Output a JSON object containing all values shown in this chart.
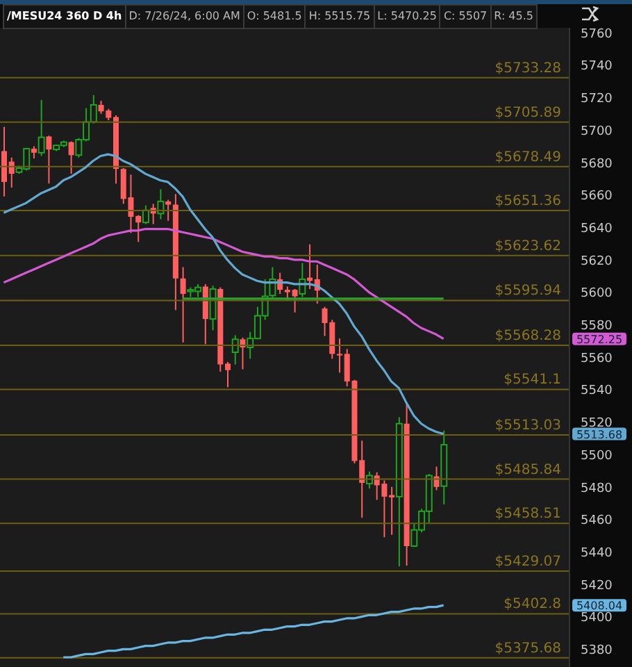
{
  "chart_data": {
    "type": "candlestick",
    "title": "/MESU24 360 D 4h",
    "annotations": [
      "D: 7/26/24, 6:00 AM",
      "O: 5481.5",
      "H: 5515.75",
      "L: 5470.25",
      "C: 5507",
      "R: 45.5",
      "5572.25",
      "5513.68",
      "5408.04"
    ],
    "categories": [
      null,
      null,
      null,
      null,
      null,
      null,
      null,
      null,
      null,
      null,
      null,
      null,
      null,
      null,
      null,
      null,
      null,
      null,
      null,
      null,
      null,
      null,
      null,
      null,
      null,
      null,
      null,
      null,
      null,
      null,
      null,
      null,
      null,
      null,
      null,
      null,
      null,
      null,
      null,
      null,
      null,
      null,
      null,
      null,
      null,
      null,
      null,
      null,
      null,
      null,
      null,
      null,
      null,
      null,
      null,
      null,
      null,
      null,
      null,
      null
    ],
    "ohlc": [
      [
        5688,
        5703,
        5660,
        5669
      ],
      [
        5681.5,
        5684,
        5665.5,
        5674
      ],
      [
        5675,
        5679,
        5674,
        5677.5
      ],
      [
        5677,
        5690,
        5676,
        5689.5
      ],
      [
        5689.5,
        5691,
        5683.5,
        5687
      ],
      [
        5687,
        5719.5,
        5685,
        5696.5
      ],
      [
        5697,
        5697.5,
        5668,
        5689
      ],
      [
        5689,
        5692,
        5688,
        5691.5
      ],
      [
        5691.5,
        5694.5,
        5690.5,
        5693.5
      ],
      [
        5693.5,
        5694,
        5674,
        5685.5
      ],
      [
        5685.5,
        5696,
        5684,
        5695
      ],
      [
        5695,
        5714.5,
        5694,
        5706
      ],
      [
        5706,
        5722.5,
        5705,
        5716.5
      ],
      [
        5716.5,
        5719,
        5711,
        5712.5
      ],
      [
        5713,
        5714,
        5707,
        5708.5
      ],
      [
        5709,
        5710,
        5668,
        5677
      ],
      [
        5677,
        5677.5,
        5655.5,
        5658.5
      ],
      [
        5659.5,
        5673.5,
        5637.5,
        5647.5
      ],
      [
        5648,
        5648.5,
        5632,
        5644
      ],
      [
        5644,
        5654.5,
        5643,
        5651.5
      ],
      [
        5653,
        5655.5,
        5643,
        5649.5
      ],
      [
        5649.5,
        5664.5,
        5646,
        5657
      ],
      [
        5657,
        5658,
        5645,
        5655
      ],
      [
        5655,
        5661.5,
        5590,
        5609.5
      ],
      [
        5609.5,
        5616.5,
        5570,
        5600
      ],
      [
        5601.5,
        5604,
        5598,
        5602.5
      ],
      [
        5601.5,
        5606,
        5598,
        5604
      ],
      [
        5604.5,
        5606,
        5569,
        5584.5
      ],
      [
        5584.5,
        5605,
        5577.5,
        5603
      ],
      [
        5603,
        5604,
        5552,
        5556.5
      ],
      [
        5557,
        5558,
        5542.5,
        5553
      ],
      [
        5564,
        5574.5,
        5556.5,
        5572
      ],
      [
        5572,
        5573,
        5553.5,
        5567
      ],
      [
        5567,
        5576.5,
        5560,
        5572.5
      ],
      [
        5572.5,
        5592,
        5572,
        5586.5
      ],
      [
        5586.5,
        5609,
        5584,
        5598.5
      ],
      [
        5599,
        5616.5,
        5597,
        5609
      ],
      [
        5609,
        5613,
        5600,
        5602.5
      ],
      [
        5602.5,
        5604.5,
        5596,
        5601
      ],
      [
        5602.5,
        5603,
        5588.5,
        5598.5
      ],
      [
        5600,
        5619,
        5598,
        5609
      ],
      [
        5610,
        5630.5,
        5603,
        5608
      ],
      [
        5609,
        5618,
        5594,
        5602
      ],
      [
        5591,
        5592,
        5574,
        5582
      ],
      [
        5582.5,
        5584,
        5560,
        5563
      ],
      [
        5563,
        5572.5,
        5551.5,
        5562
      ],
      [
        5563,
        5566,
        5543,
        5546
      ],
      [
        5546.5,
        5547,
        5495.5,
        5497
      ],
      [
        5497.5,
        5509.5,
        5462,
        5483.5
      ],
      [
        5483,
        5490.5,
        5480,
        5488
      ],
      [
        5488,
        5490,
        5473,
        5482
      ],
      [
        5483,
        5485,
        5450,
        5475
      ],
      [
        5476,
        5481,
        5451.5,
        5474.5
      ],
      [
        5475,
        5524,
        5432,
        5520
      ],
      [
        5520,
        5532.5,
        5432.5,
        5444.5
      ],
      [
        5444.5,
        5458.5,
        5444,
        5454.5
      ],
      [
        5454.5,
        5467.5,
        5453,
        5466
      ],
      [
        5466,
        5489,
        5459,
        5488
      ],
      [
        5487.5,
        5493.5,
        5479,
        5481
      ],
      [
        5481.5,
        5515.75,
        5470.25,
        5507
      ]
    ],
    "series": [
      {
        "type": "line",
        "color": "#d35ad3",
        "values": [
          5607,
          5609,
          5611,
          5613,
          5615,
          5617,
          5619,
          5621,
          5623,
          5625,
          5627,
          5629,
          5631,
          5634,
          5636,
          5637,
          5638,
          5639,
          5639,
          5640,
          5640,
          5640,
          5640,
          5639,
          5638,
          5637,
          5636,
          5635,
          5634,
          5632,
          5630,
          5628,
          5626,
          5625,
          5624,
          5623,
          5623,
          5622,
          5622,
          5621,
          5621,
          5620,
          5620,
          5618,
          5616,
          5614,
          5612,
          5609,
          5605,
          5601,
          5598,
          5595,
          5592,
          5589,
          5586,
          5582,
          5579,
          5577,
          5575,
          5572.25
        ]
      },
      {
        "type": "line",
        "color": "#62a9d2",
        "values": [
          5650,
          5652,
          5654,
          5656,
          5659,
          5662,
          5664,
          5666,
          5670,
          5672,
          5675,
          5678,
          5682,
          5685,
          5686,
          5685,
          5682,
          5680,
          5677,
          5674,
          5672,
          5670,
          5669,
          5665,
          5660,
          5652,
          5646,
          5640,
          5635,
          5627,
          5621,
          5616,
          5612,
          5610,
          5608,
          5607,
          5607,
          5607,
          5607,
          5606,
          5606,
          5606,
          5605,
          5602,
          5598,
          5594,
          5588,
          5580,
          5574,
          5566,
          5559,
          5553,
          5546,
          5542,
          5533,
          5525,
          5520,
          5517,
          5515,
          5513.68
        ]
      },
      {
        "type": "line",
        "color": "#6ab6e2",
        "values": [
          null,
          null,
          null,
          null,
          null,
          null,
          null,
          null,
          5376,
          5376,
          5377,
          5378,
          5378,
          5379,
          5380,
          5380,
          5381,
          5381,
          5382,
          5383,
          5383,
          5384,
          5385,
          5385,
          5386,
          5386,
          5387,
          5388,
          5388,
          5389,
          5390,
          5390,
          5391,
          5391,
          5392,
          5393,
          5393,
          5394,
          5395,
          5395,
          5396,
          5396,
          5397,
          5398,
          5398,
          5399,
          5400,
          5400,
          5401,
          5402,
          5402,
          5403,
          5404,
          5404,
          5405,
          5406,
          5406,
          5407,
          5407,
          5408.04
        ]
      },
      {
        "type": "line",
        "color": "#2ea02e",
        "values": [
          null,
          null,
          null,
          null,
          null,
          null,
          null,
          null,
          null,
          null,
          null,
          null,
          null,
          null,
          null,
          null,
          null,
          null,
          null,
          null,
          null,
          null,
          null,
          null,
          5597,
          5597,
          5597,
          5597,
          5597,
          5597,
          5597,
          5597,
          5597,
          5597,
          5597,
          5597,
          5597,
          5597,
          5597,
          5597,
          5597,
          5597,
          5597,
          5597,
          5597,
          5597,
          5597,
          5597,
          5597,
          5597,
          5597,
          5597,
          5597,
          5597,
          5597,
          5597,
          5597,
          5597,
          5597,
          5597
        ]
      }
    ],
    "ref_lines": [
      {
        "axis": "y",
        "value": 5733.28,
        "label": "$5733.28",
        "color": "#6e5e14"
      },
      {
        "axis": "y",
        "value": 5705.89,
        "label": "$5705.89",
        "color": "#6e5e14"
      },
      {
        "axis": "y",
        "value": 5678.49,
        "label": "$5678.49",
        "color": "#6e5e14"
      },
      {
        "axis": "y",
        "value": 5651.36,
        "label": "$5651.36",
        "color": "#6e5e14"
      },
      {
        "axis": "y",
        "value": 5623.62,
        "label": "$5623.62",
        "color": "#6e5e14"
      },
      {
        "axis": "y",
        "value": 5595.94,
        "label": "$5595.94",
        "color": "#6e5e14"
      },
      {
        "axis": "y",
        "value": 5568.28,
        "label": "$5568.28",
        "color": "#6e5e14"
      },
      {
        "axis": "y",
        "value": 5541.1,
        "label": "$5541.1",
        "color": "#6e5e14"
      },
      {
        "axis": "y",
        "value": 5513.03,
        "label": "$5513.03",
        "color": "#6e5e14"
      },
      {
        "axis": "y",
        "value": 5485.84,
        "label": "$5485.84",
        "color": "#6e5e14"
      },
      {
        "axis": "y",
        "value": 5458.51,
        "label": "$5458.51",
        "color": "#6e5e14"
      },
      {
        "axis": "y",
        "value": 5429.07,
        "label": "$5429.07",
        "color": "#6e5e14"
      },
      {
        "axis": "y",
        "value": 5402.8,
        "label": "$5402.8",
        "color": "#6e5e14"
      },
      {
        "axis": "y",
        "value": 5375.68,
        "label": "$5375.68",
        "color": "#6e5e14"
      }
    ],
    "ylim": [
      5370,
      5764
    ],
    "yticks": [
      5380,
      5400,
      5420,
      5440,
      5460,
      5480,
      5500,
      5520,
      5540,
      5560,
      5580,
      5600,
      5620,
      5640,
      5660,
      5680,
      5700,
      5720,
      5740,
      5760
    ],
    "tick_labels": "y"
  }
}
